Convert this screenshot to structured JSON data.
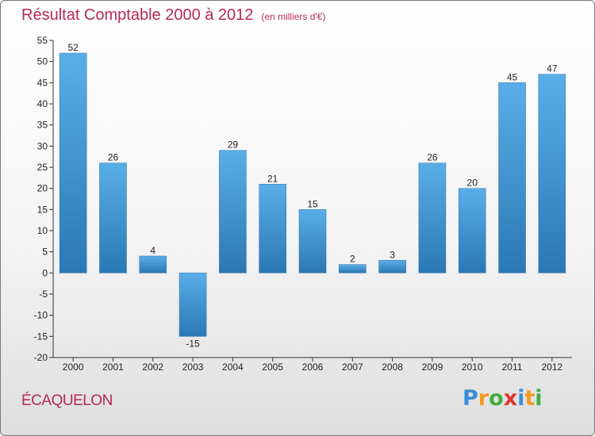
{
  "chart_data": {
    "type": "bar",
    "title": "Résultat Comptable 2000 à 2012",
    "subtitle": "(en milliers d'€)",
    "categories": [
      "2000",
      "2001",
      "2002",
      "2003",
      "2004",
      "2005",
      "2006",
      "2007",
      "2008",
      "2009",
      "2010",
      "2011",
      "2012"
    ],
    "values": [
      52,
      26,
      4,
      -15,
      29,
      21,
      15,
      2,
      3,
      26,
      20,
      45,
      47
    ],
    "ylim": [
      -20,
      55
    ],
    "yticks": [
      -20,
      -15,
      -10,
      -5,
      0,
      5,
      10,
      15,
      20,
      25,
      30,
      35,
      40,
      45,
      50,
      55
    ],
    "grid": false,
    "bar_color_top": "#5aaee8",
    "bar_color_bottom": "#2a78b5"
  },
  "location": "ÉCAQUELON",
  "brand": {
    "letters": [
      "P",
      "r",
      "o",
      "x",
      "i",
      "t",
      "i"
    ],
    "colors": [
      "#3a8fd6",
      "#f39a1e",
      "#3fae3f",
      "#e0342f",
      "#3a8fd6",
      "#f39a1e",
      "#3fae3f"
    ]
  }
}
